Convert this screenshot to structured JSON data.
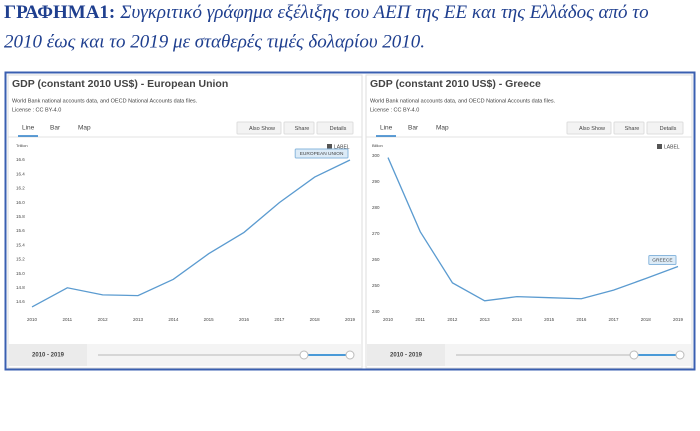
{
  "heading": {
    "label": "ΓΡΑΦΗΜΑ1:",
    "line1": "Συγκριτικό γράφημα εξέλιξης του ΑΕΠ της ΕΕ και της Ελλάδος από το",
    "line2": "2010 έως και το 2019 με σταθερές τιμές δολαρίου 2010."
  },
  "chart_data": [
    {
      "type": "line",
      "title": "GDP (constant 2010 US$) - European Union",
      "source": "World Bank national accounts data, and OECD National Accounts data files.",
      "license": "License : CC BY-4.0",
      "tabs": [
        "Line",
        "Bar",
        "Map"
      ],
      "buttons": [
        "Also Show",
        "Share",
        "Details"
      ],
      "label_toggle": "LABEL",
      "unit": "Trillion",
      "range_label": "2010 - 2019",
      "categories": [
        "2010",
        "2011",
        "2012",
        "2013",
        "2014",
        "2015",
        "2016",
        "2017",
        "2018",
        "2019"
      ],
      "series": [
        {
          "name": "EUROPEAN UNION",
          "color": "#5b9bd0",
          "values": [
            14.53,
            14.8,
            14.7,
            14.69,
            14.92,
            15.28,
            15.58,
            16.0,
            16.36,
            16.6
          ]
        }
      ],
      "ylim": [
        14.6,
        16.6
      ],
      "yticks": [
        14.6,
        14.8,
        {
          "value": 15,
          "label": "15.0"
        },
        15.2,
        15.4,
        15.6,
        15.8,
        {
          "value": 16,
          "label": "16.0"
        },
        16.2,
        16.4,
        16.6
      ]
    },
    {
      "type": "line",
      "title": "GDP (constant 2010 US$) - Greece",
      "source": "World Bank national accounts data, and OECD National Accounts data files.",
      "license": "License : CC BY-4.0",
      "tabs": [
        "Line",
        "Bar",
        "Map"
      ],
      "buttons": [
        "Also Show",
        "Share",
        "Details"
      ],
      "label_toggle": "LABEL",
      "unit": "Billion",
      "range_label": "2010 - 2019",
      "categories": [
        "2010",
        "2011",
        "2012",
        "2013",
        "2014",
        "2015",
        "2016",
        "2017",
        "2018",
        "2019"
      ],
      "series": [
        {
          "name": "GREECE",
          "color": "#5b9bd0",
          "values": [
            299.4,
            270.9,
            251.2,
            244.3,
            245.9,
            245.5,
            245.1,
            248.4,
            252.9,
            257.5
          ]
        }
      ],
      "ylim": [
        240,
        300
      ],
      "yticks": [
        240,
        250,
        260,
        270,
        280,
        290,
        300
      ]
    }
  ]
}
